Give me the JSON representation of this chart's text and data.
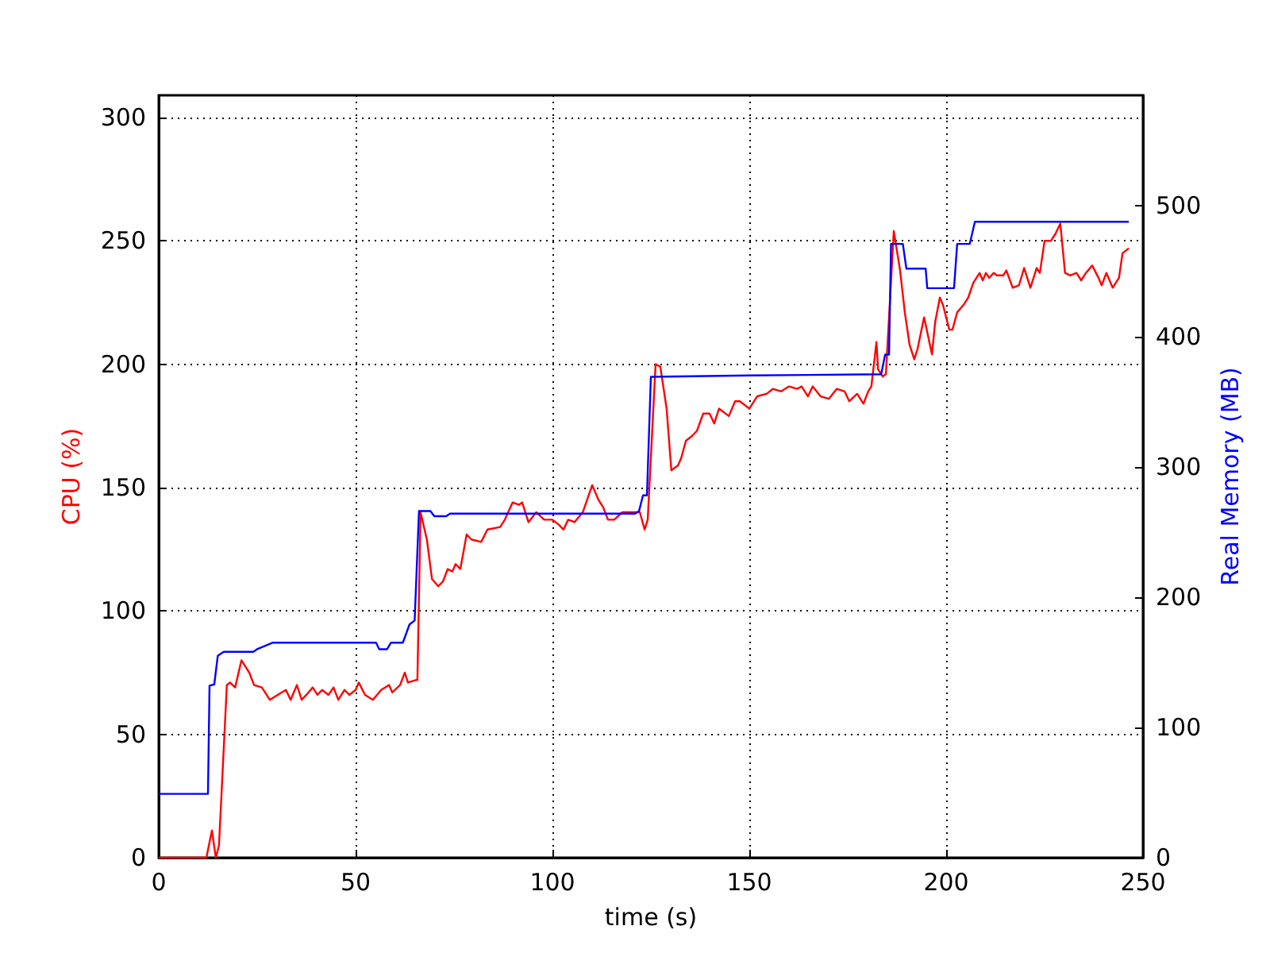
{
  "chart_data": {
    "type": "line",
    "xlabel": "time (s)",
    "ylabel": "CPU (%)",
    "y2label": "Real Memory (MB)",
    "xlim": [
      0,
      250
    ],
    "xticks": [
      0,
      50,
      100,
      150,
      200,
      250
    ],
    "ylim": [
      0,
      309
    ],
    "yticks": [
      0,
      50,
      100,
      150,
      200,
      250,
      300
    ],
    "y2lim": [
      0,
      585
    ],
    "y2ticks": [
      0,
      100,
      200,
      300,
      400,
      500
    ],
    "grid": true,
    "marker": "none",
    "line_style": "solid",
    "series": [
      {
        "color": "#ff0000",
        "axis": "y",
        "x": [
          0,
          12.1,
          13.5,
          14.5,
          15.3,
          17.3,
          18.1,
          19.4,
          21,
          23,
          24.2,
          26.2,
          28.2,
          30.2,
          32.3,
          33.5,
          35.1,
          36.3,
          37.5,
          39.1,
          40.3,
          41.5,
          43.1,
          44.4,
          45.6,
          47.2,
          48.4,
          50,
          50.8,
          52.4,
          54.4,
          56.5,
          58.5,
          59.3,
          61.3,
          62.5,
          63.3,
          65.3,
          65.7,
          66.5,
          68.1,
          69.4,
          71,
          72.2,
          73.4,
          74.6,
          75.4,
          76.6,
          78.2,
          79.4,
          81.9,
          83.5,
          86.7,
          87.9,
          89.9,
          91.5,
          92.3,
          93.9,
          95.9,
          97.9,
          100,
          101.6,
          102.8,
          104,
          105.6,
          107.7,
          110.1,
          111.7,
          112.9,
          114.1,
          115.7,
          117.7,
          119.8,
          122.2,
          123.4,
          124.2,
          126.2,
          127.4,
          129,
          130.2,
          131.9,
          132.7,
          133.9,
          135.5,
          136.7,
          138.3,
          139.9,
          141.1,
          142.3,
          144.8,
          146.4,
          147.6,
          150,
          152,
          154.4,
          156,
          158.1,
          160.1,
          162.1,
          163.3,
          164.9,
          166.1,
          168.1,
          170.2,
          172.2,
          174.2,
          175.4,
          177.4,
          179,
          180.2,
          181,
          182.3,
          182.7,
          183.9,
          184.7,
          186.7,
          188.3,
          189.5,
          190.7,
          191.9,
          192.7,
          194.4,
          196.4,
          197.2,
          198.4,
          199.2,
          200.8,
          201.6,
          202.8,
          204.4,
          205.6,
          206.9,
          208.5,
          209.3,
          210.1,
          210.9,
          212.1,
          212.9,
          214.5,
          215.3,
          216.9,
          218.5,
          219.8,
          220.6,
          221.4,
          223,
          223.8,
          225,
          226.6,
          227.8,
          229,
          230.2,
          231.5,
          233.1,
          234.3,
          235.5,
          237.1,
          238.7,
          239.5,
          240.7,
          242.3,
          243.9,
          244.8,
          246.4
        ],
        "values": [
          0,
          0,
          11,
          0,
          5,
          70,
          71,
          69,
          80,
          75,
          70,
          69,
          64,
          66,
          68,
          64,
          70,
          64,
          66,
          69,
          66,
          68,
          66,
          69,
          64,
          68,
          66,
          68,
          71,
          66,
          64,
          68,
          70,
          67,
          70,
          75,
          71,
          72,
          72,
          140,
          129,
          113,
          110,
          112,
          117,
          116,
          119,
          117,
          131,
          129,
          128,
          133,
          134,
          137,
          144,
          143,
          144,
          136,
          140,
          137,
          137,
          135,
          133,
          137,
          136,
          140,
          151,
          145,
          142,
          137,
          137,
          140,
          140,
          140,
          133,
          137,
          200,
          199,
          182,
          157,
          159,
          162,
          169,
          171,
          173,
          180,
          180,
          176,
          182,
          179,
          185,
          185,
          182,
          187,
          188,
          190,
          189,
          191,
          190,
          191,
          187,
          191,
          187,
          186,
          190,
          189,
          185,
          188,
          184,
          189,
          191,
          209,
          198,
          195,
          196,
          254,
          238,
          221,
          208,
          202,
          206,
          219,
          204,
          217,
          227,
          224,
          214,
          214,
          221,
          224,
          227,
          233,
          237,
          234,
          237,
          235,
          237,
          236,
          236,
          238,
          231,
          232,
          239,
          235,
          231,
          239,
          237,
          250,
          250,
          253,
          257,
          237,
          236,
          237,
          234,
          237,
          240,
          235,
          232,
          237,
          231,
          235,
          245,
          247
        ]
      },
      {
        "color": "#0000ff",
        "axis": "y2",
        "x": [
          0,
          12.5,
          12.9,
          14.1,
          15,
          16.5,
          24,
          25,
          29,
          55.2,
          56,
          58,
          59,
          62,
          63.7,
          65,
          66.1,
          69,
          70,
          73,
          74,
          121,
          122,
          123,
          124,
          125,
          150,
          183.5,
          184.5,
          185.5,
          186,
          189,
          189.9,
          194.8,
          195.2,
          202,
          202.8,
          206,
          207.3,
          246.4
        ],
        "values": [
          49,
          49,
          132,
          133,
          155,
          158,
          158,
          160,
          165,
          165,
          160,
          160,
          165,
          165,
          179,
          182,
          266,
          266,
          262,
          262,
          264,
          264,
          266,
          278,
          278,
          369,
          370,
          371,
          386,
          386,
          471,
          471,
          452,
          452,
          437,
          437,
          471,
          471,
          488,
          488
        ]
      }
    ]
  }
}
